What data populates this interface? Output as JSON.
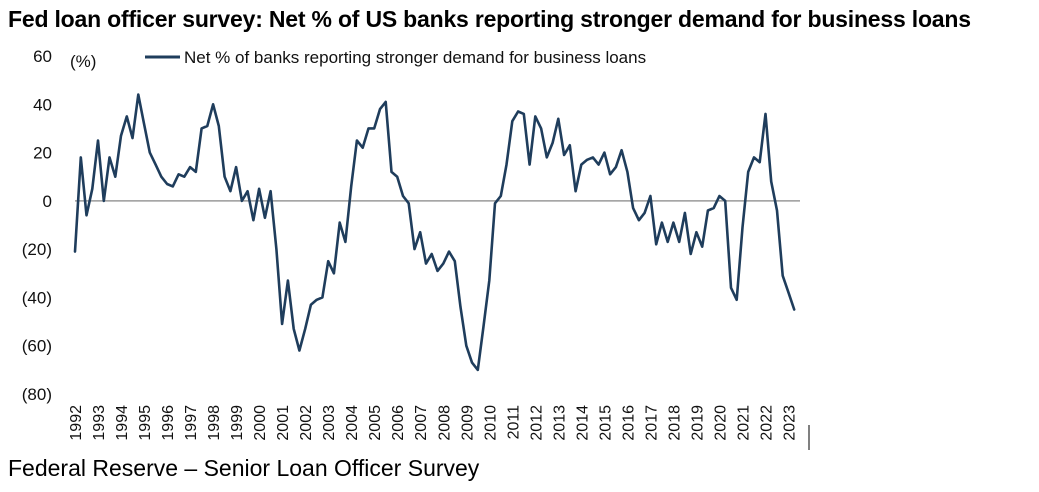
{
  "title": "Fed loan officer survey: Net % of US banks reporting stronger demand for business loans",
  "source": "Federal Reserve – Senior Loan Officer Survey",
  "chart_data": {
    "type": "line",
    "ylabel": "(%)",
    "ylim": [
      -80,
      60
    ],
    "yticks": [
      60,
      40,
      20,
      0,
      -20,
      -40,
      -60,
      -80
    ],
    "ytick_labels": [
      "60",
      "40",
      "20",
      "0",
      "(20)",
      "(40)",
      "(60)",
      "(80)"
    ],
    "xlim": [
      1992,
      2023.5
    ],
    "xticks": [
      "1992",
      "1993",
      "1994",
      "1995",
      "1996",
      "1997",
      "1998",
      "1999",
      "2000",
      "2001",
      "2002",
      "2003",
      "2004",
      "2005",
      "2006",
      "2007",
      "2008",
      "2009",
      "2010",
      "2011",
      "2012",
      "2013",
      "2014",
      "2015",
      "2016",
      "2017",
      "2018",
      "2019",
      "2020",
      "2021",
      "2022",
      "2023"
    ],
    "legend_position": "top",
    "series": [
      {
        "name": "Net % of banks reporting stronger demand for business loans",
        "color": "#1f3d5c",
        "points": [
          [
            1992.0,
            -21
          ],
          [
            1992.25,
            18
          ],
          [
            1992.5,
            -6
          ],
          [
            1992.75,
            5
          ],
          [
            1993.0,
            25
          ],
          [
            1993.25,
            0
          ],
          [
            1993.5,
            18
          ],
          [
            1993.75,
            10
          ],
          [
            1994.0,
            27
          ],
          [
            1994.25,
            35
          ],
          [
            1994.5,
            26
          ],
          [
            1994.75,
            44
          ],
          [
            1995.0,
            32
          ],
          [
            1995.25,
            20
          ],
          [
            1995.5,
            15
          ],
          [
            1995.75,
            10
          ],
          [
            1996.0,
            7
          ],
          [
            1996.25,
            6
          ],
          [
            1996.5,
            11
          ],
          [
            1996.75,
            10
          ],
          [
            1997.0,
            14
          ],
          [
            1997.25,
            12
          ],
          [
            1997.5,
            30
          ],
          [
            1997.75,
            31
          ],
          [
            1998.0,
            40
          ],
          [
            1998.25,
            31
          ],
          [
            1998.5,
            10
          ],
          [
            1998.75,
            4
          ],
          [
            1999.0,
            14
          ],
          [
            1999.25,
            0
          ],
          [
            1999.5,
            4
          ],
          [
            1999.75,
            -8
          ],
          [
            2000.0,
            5
          ],
          [
            2000.25,
            -7
          ],
          [
            2000.5,
            4
          ],
          [
            2000.75,
            -20
          ],
          [
            2001.0,
            -51
          ],
          [
            2001.25,
            -33
          ],
          [
            2001.5,
            -53
          ],
          [
            2001.75,
            -62
          ],
          [
            2002.0,
            -53
          ],
          [
            2002.25,
            -43
          ],
          [
            2002.5,
            -41
          ],
          [
            2002.75,
            -40
          ],
          [
            2003.0,
            -25
          ],
          [
            2003.25,
            -30
          ],
          [
            2003.5,
            -9
          ],
          [
            2003.75,
            -17
          ],
          [
            2004.0,
            6
          ],
          [
            2004.25,
            25
          ],
          [
            2004.5,
            22
          ],
          [
            2004.75,
            30
          ],
          [
            2005.0,
            30
          ],
          [
            2005.25,
            38
          ],
          [
            2005.5,
            41
          ],
          [
            2005.75,
            12
          ],
          [
            2006.0,
            10
          ],
          [
            2006.25,
            2
          ],
          [
            2006.5,
            -1
          ],
          [
            2006.75,
            -20
          ],
          [
            2007.0,
            -13
          ],
          [
            2007.25,
            -26
          ],
          [
            2007.5,
            -22
          ],
          [
            2007.75,
            -29
          ],
          [
            2008.0,
            -26
          ],
          [
            2008.25,
            -21
          ],
          [
            2008.5,
            -25
          ],
          [
            2008.75,
            -44
          ],
          [
            2009.0,
            -60
          ],
          [
            2009.25,
            -67
          ],
          [
            2009.5,
            -70
          ],
          [
            2009.75,
            -52
          ],
          [
            2010.0,
            -33
          ],
          [
            2010.25,
            -1
          ],
          [
            2010.5,
            2
          ],
          [
            2010.75,
            15
          ],
          [
            2011.0,
            33
          ],
          [
            2011.25,
            37
          ],
          [
            2011.5,
            36
          ],
          [
            2011.75,
            15
          ],
          [
            2012.0,
            35
          ],
          [
            2012.25,
            30
          ],
          [
            2012.5,
            18
          ],
          [
            2012.75,
            24
          ],
          [
            2013.0,
            34
          ],
          [
            2013.25,
            19
          ],
          [
            2013.5,
            23
          ],
          [
            2013.75,
            4
          ],
          [
            2014.0,
            15
          ],
          [
            2014.25,
            17
          ],
          [
            2014.5,
            18
          ],
          [
            2014.75,
            15
          ],
          [
            2015.0,
            20
          ],
          [
            2015.25,
            11
          ],
          [
            2015.5,
            14
          ],
          [
            2015.75,
            21
          ],
          [
            2016.0,
            12
          ],
          [
            2016.25,
            -3
          ],
          [
            2016.5,
            -8
          ],
          [
            2016.75,
            -5
          ],
          [
            2017.0,
            2
          ],
          [
            2017.25,
            -18
          ],
          [
            2017.5,
            -9
          ],
          [
            2017.75,
            -17
          ],
          [
            2018.0,
            -9
          ],
          [
            2018.25,
            -17
          ],
          [
            2018.5,
            -5
          ],
          [
            2018.75,
            -22
          ],
          [
            2019.0,
            -13
          ],
          [
            2019.25,
            -19
          ],
          [
            2019.5,
            -4
          ],
          [
            2019.75,
            -3
          ],
          [
            2020.0,
            2
          ],
          [
            2020.25,
            0
          ],
          [
            2020.5,
            -36
          ],
          [
            2020.75,
            -41
          ],
          [
            2021.0,
            -11
          ],
          [
            2021.25,
            12
          ],
          [
            2021.5,
            18
          ],
          [
            2021.75,
            16
          ],
          [
            2022.0,
            36
          ],
          [
            2022.25,
            8
          ],
          [
            2022.5,
            -4
          ],
          [
            2022.75,
            -31
          ],
          [
            2023.0,
            -38
          ],
          [
            2023.25,
            -45
          ]
        ]
      }
    ]
  }
}
